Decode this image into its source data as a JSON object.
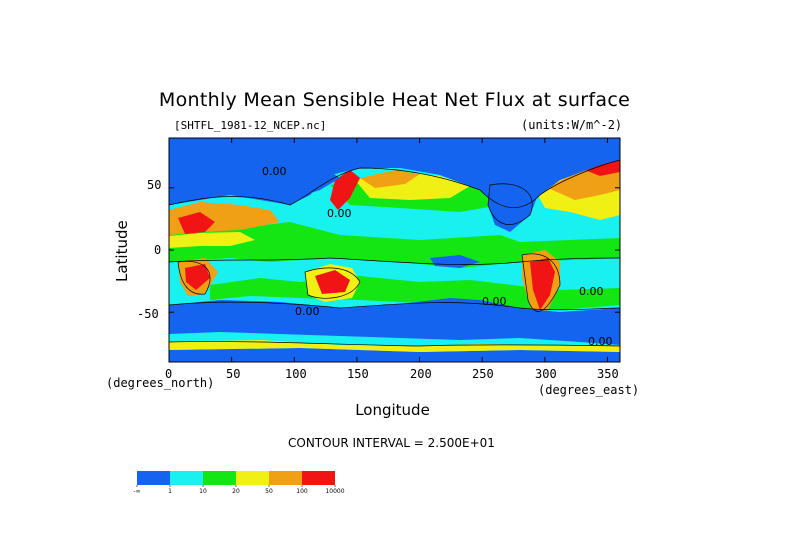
{
  "chart_data": {
    "type": "heatmap",
    "title": "Monthly Mean Sensible Heat Net Flux at surface",
    "subtitle_left": "[SHTFL_1981-12_NCEP.nc]",
    "subtitle_right": "(units:W/m^-2)",
    "xlabel": "Longitude",
    "ylabel": "Latitude",
    "x_unit_label": "(degrees_east)",
    "y_unit_label": "(degrees_north)",
    "xlim": [
      0,
      360
    ],
    "ylim": [
      -90,
      90
    ],
    "x_ticks": [
      "0",
      "50",
      "100",
      "150",
      "200",
      "250",
      "300",
      "350"
    ],
    "x_tick_values": [
      0,
      50,
      100,
      150,
      200,
      250,
      300,
      350
    ],
    "y_ticks": [
      "50",
      "0",
      "-50"
    ],
    "y_tick_values": [
      50,
      0,
      -50
    ],
    "contour_interval": "CONTOUR INTERVAL = 2.500E+01",
    "contour_labels": [
      "0.00",
      "0.00",
      "0.00",
      "0.00",
      "0.00",
      "0.00"
    ],
    "colorbar": {
      "colors": [
        "#1464f0",
        "#19f0f0",
        "#14e614",
        "#f0f014",
        "#f0a014",
        "#f01414"
      ],
      "labels": [
        "-∞",
        "1",
        "10",
        "20",
        "50",
        "100",
        "10000"
      ]
    }
  }
}
